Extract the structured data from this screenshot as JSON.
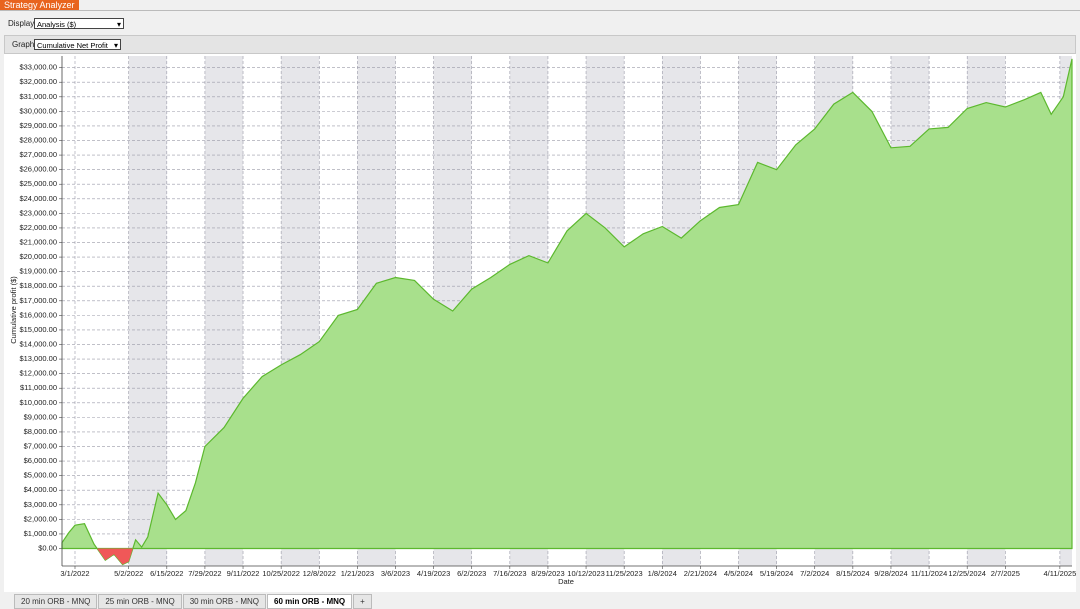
{
  "window": {
    "title": "Strategy Analyzer"
  },
  "controls": {
    "display_label": "Display",
    "display_value": "Analysis ($)",
    "graph_label": "Graph",
    "graph_value": "Cumulative Net Profit"
  },
  "chart_data": {
    "type": "area",
    "ylabel": "Cumulative profit ($)",
    "xlabel": "Date",
    "x": [
      "2/14/2022",
      "2/22/2022",
      "3/1/2022",
      "3/12/2022",
      "3/23/2022",
      "4/5/2022",
      "4/15/2022",
      "4/25/2022",
      "5/2/2022",
      "5/10/2022",
      "5/17/2022",
      "5/24/2022",
      "6/5/2022",
      "6/15/2022",
      "6/25/2022",
      "7/7/2022",
      "7/18/2022",
      "7/29/2022",
      "8/20/2022",
      "9/11/2022",
      "10/3/2022",
      "10/25/2022",
      "11/16/2022",
      "12/8/2022",
      "12/30/2022",
      "1/21/2023",
      "2/12/2023",
      "3/6/2023",
      "3/28/2023",
      "4/19/2023",
      "5/11/2023",
      "6/2/2023",
      "6/24/2023",
      "7/16/2023",
      "8/7/2023",
      "8/29/2023",
      "9/20/2023",
      "10/12/2023",
      "11/3/2023",
      "11/25/2023",
      "12/17/2023",
      "1/8/2024",
      "1/30/2024",
      "2/21/2024",
      "3/14/2024",
      "4/5/2024",
      "4/27/2024",
      "5/19/2024",
      "6/10/2024",
      "7/2/2024",
      "7/24/2024",
      "8/15/2024",
      "9/6/2024",
      "9/28/2024",
      "10/20/2024",
      "11/11/2024",
      "12/3/2024",
      "12/25/2024",
      "1/16/2025",
      "2/7/2025",
      "3/1/2025",
      "3/20/2025",
      "4/1/2025",
      "4/15/2025",
      "4/25/2025"
    ],
    "values": [
      400,
      1100,
      1600,
      1700,
      300,
      -800,
      -400,
      -1100,
      -900,
      600,
      100,
      800,
      3800,
      3000,
      2000,
      2600,
      4500,
      7000,
      8300,
      10300,
      11800,
      12600,
      13300,
      14200,
      16000,
      16400,
      18200,
      18600,
      18400,
      17100,
      16300,
      17800,
      18600,
      19500,
      20100,
      19600,
      21800,
      23000,
      22000,
      20700,
      21600,
      22100,
      21300,
      22500,
      23400,
      23600,
      26500,
      26000,
      27700,
      28800,
      30500,
      31300,
      30000,
      27500,
      27600,
      28800,
      28900,
      30200,
      30600,
      30300,
      30800,
      31300,
      29800,
      31000,
      33600
    ],
    "xlim": [
      "2/14/2022",
      "4/25/2025"
    ],
    "xticks": [
      "3/1/2022",
      "5/2/2022",
      "6/15/2022",
      "7/29/2022",
      "9/11/2022",
      "10/25/2022",
      "12/8/2022",
      "1/21/2023",
      "3/6/2023",
      "4/19/2023",
      "6/2/2023",
      "7/16/2023",
      "8/29/2023",
      "10/12/2023",
      "11/25/2023",
      "1/8/2024",
      "2/21/2024",
      "4/5/2024",
      "5/19/2024",
      "7/2/2024",
      "8/15/2024",
      "9/28/2024",
      "11/11/2024",
      "12/25/2024",
      "2/7/2025",
      "4/11/2025"
    ],
    "ylim": [
      -1200,
      33800
    ],
    "yticks": [
      {
        "value": 0,
        "label": "$0.00"
      },
      {
        "value": 1000,
        "label": "$1,000.00"
      },
      {
        "value": 2000,
        "label": "$2,000.00"
      },
      {
        "value": 3000,
        "label": "$3,000.00"
      },
      {
        "value": 4000,
        "label": "$4,000.00"
      },
      {
        "value": 5000,
        "label": "$5,000.00"
      },
      {
        "value": 6000,
        "label": "$6,000.00"
      },
      {
        "value": 7000,
        "label": "$7,000.00"
      },
      {
        "value": 8000,
        "label": "$8,000.00"
      },
      {
        "value": 9000,
        "label": "$9,000.00"
      },
      {
        "value": 10000,
        "label": "$10,000.00"
      },
      {
        "value": 11000,
        "label": "$11,000.00"
      },
      {
        "value": 12000,
        "label": "$12,000.00"
      },
      {
        "value": 13000,
        "label": "$13,000.00"
      },
      {
        "value": 14000,
        "label": "$14,000.00"
      },
      {
        "value": 15000,
        "label": "$15,000.00"
      },
      {
        "value": 16000,
        "label": "$16,000.00"
      },
      {
        "value": 17000,
        "label": "$17,000.00"
      },
      {
        "value": 18000,
        "label": "$18,000.00"
      },
      {
        "value": 19000,
        "label": "$19,000.00"
      },
      {
        "value": 20000,
        "label": "$20,000.00"
      },
      {
        "value": 21000,
        "label": "$21,000.00"
      },
      {
        "value": 22000,
        "label": "$22,000.00"
      },
      {
        "value": 23000,
        "label": "$23,000.00"
      },
      {
        "value": 24000,
        "label": "$24,000.00"
      },
      {
        "value": 25000,
        "label": "$25,000.00"
      },
      {
        "value": 26000,
        "label": "$26,000.00"
      },
      {
        "value": 27000,
        "label": "$27,000.00"
      },
      {
        "value": 28000,
        "label": "$28,000.00"
      },
      {
        "value": 29000,
        "label": "$29,000.00"
      },
      {
        "value": 30000,
        "label": "$30,000.00"
      },
      {
        "value": 31000,
        "label": "$31,000.00"
      },
      {
        "value": 32000,
        "label": "$32,000.00"
      },
      {
        "value": 33000,
        "label": "$33,000.00"
      }
    ],
    "grid": true,
    "color": "#a8e08c",
    "line_color": "#5cb82e",
    "negative_color": "#f05858"
  },
  "tabs": [
    "20 min ORB - MNQ",
    "25 min ORB - MNQ",
    "30 min ORB - MNQ",
    "60 min ORB - MNQ",
    "+"
  ]
}
